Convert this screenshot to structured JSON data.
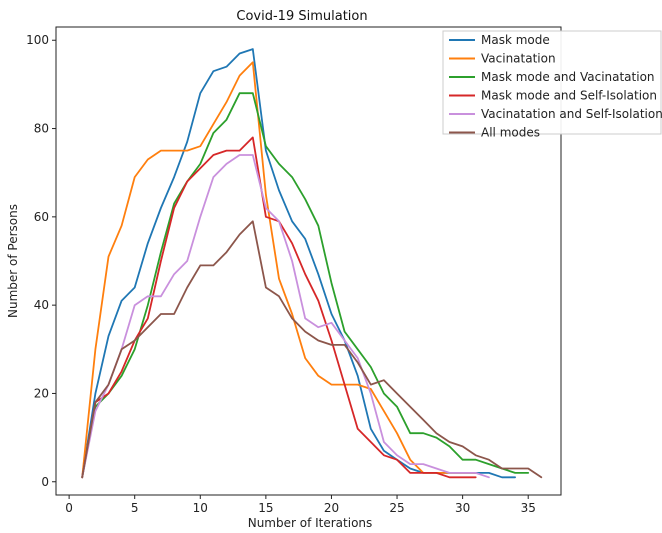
{
  "chart_data": {
    "type": "line",
    "title": "Covid-19 Simulation",
    "xlabel": "Number of Iterations",
    "ylabel": "Number of Persons",
    "xlim": [
      -1,
      37.5
    ],
    "ylim": [
      -3,
      103
    ],
    "xticks": [
      0,
      5,
      10,
      15,
      20,
      25,
      30,
      35
    ],
    "yticks": [
      0,
      20,
      40,
      60,
      80,
      100
    ],
    "grid": false,
    "legend_position": "top-right",
    "series": [
      {
        "name": "Mask mode",
        "color": "#1f77b4",
        "x": [
          1,
          2,
          3,
          4,
          5,
          6,
          7,
          8,
          9,
          10,
          11,
          12,
          13,
          14,
          15,
          16,
          17,
          18,
          19,
          20,
          21,
          22,
          23,
          24,
          25,
          26,
          27,
          28,
          29,
          30,
          31,
          32,
          33,
          34
        ],
        "y": [
          1,
          20,
          33,
          41,
          44,
          54,
          62,
          69,
          77,
          88,
          93,
          94,
          97,
          98,
          75,
          66,
          59,
          55,
          47,
          38,
          32,
          24,
          12,
          7,
          5,
          3,
          2,
          2,
          2,
          2,
          2,
          2,
          1,
          1
        ]
      },
      {
        "name": "Vacinatation",
        "color": "#ff7f0e",
        "x": [
          1,
          2,
          3,
          4,
          5,
          6,
          7,
          8,
          9,
          10,
          11,
          12,
          13,
          14,
          15,
          16,
          17,
          18,
          19,
          20,
          21,
          22,
          23,
          24,
          25,
          26,
          27,
          28,
          29,
          30,
          31
        ],
        "y": [
          1,
          30,
          51,
          58,
          69,
          73,
          75,
          75,
          75,
          76,
          81,
          86,
          92,
          95,
          65,
          46,
          38,
          28,
          24,
          22,
          22,
          22,
          21,
          16,
          11,
          5,
          2,
          2,
          2,
          2,
          2
        ]
      },
      {
        "name": "Mask  mode and Vacinatation",
        "color": "#2ca02c",
        "x": [
          1,
          2,
          3,
          4,
          5,
          6,
          7,
          8,
          9,
          10,
          11,
          12,
          13,
          14,
          15,
          16,
          17,
          18,
          19,
          20,
          21,
          22,
          23,
          24,
          25,
          26,
          27,
          28,
          29,
          30,
          31,
          32,
          33,
          34,
          35
        ],
        "y": [
          1,
          17,
          20,
          24,
          30,
          40,
          52,
          63,
          68,
          72,
          79,
          82,
          88,
          88,
          76,
          72,
          69,
          64,
          58,
          45,
          34,
          30,
          26,
          20,
          17,
          11,
          11,
          10,
          8,
          5,
          5,
          4,
          3,
          2,
          2
        ]
      },
      {
        "name": "Mask mode and Self-Isolation",
        "color": "#d62728",
        "x": [
          1,
          2,
          3,
          4,
          5,
          6,
          7,
          8,
          9,
          10,
          11,
          12,
          13,
          14,
          15,
          16,
          17,
          18,
          19,
          20,
          21,
          22,
          23,
          24,
          25,
          26,
          27,
          28,
          29,
          30,
          31
        ],
        "y": [
          1,
          18,
          20,
          25,
          32,
          37,
          50,
          62,
          68,
          71,
          74,
          75,
          75,
          78,
          60,
          59,
          54,
          47,
          41,
          32,
          22,
          12,
          9,
          6,
          5,
          2,
          2,
          2,
          1,
          1,
          1
        ]
      },
      {
        "name": "Vacinatation and Self-Isolation",
        "color": "#c990dd",
        "x": [
          1,
          2,
          3,
          4,
          5,
          6,
          7,
          8,
          9,
          10,
          11,
          12,
          13,
          14,
          15,
          16,
          17,
          18,
          19,
          20,
          21,
          22,
          23,
          24,
          25,
          26,
          27,
          28,
          29,
          30,
          31,
          32
        ],
        "y": [
          1,
          16,
          22,
          30,
          40,
          42,
          42,
          47,
          50,
          60,
          69,
          72,
          74,
          74,
          62,
          59,
          50,
          37,
          35,
          36,
          32,
          28,
          20,
          9,
          6,
          4,
          4,
          3,
          2,
          2,
          2,
          1
        ]
      },
      {
        "name": "All modes",
        "color": "#8c564b",
        "x": [
          1,
          2,
          3,
          4,
          5,
          6,
          7,
          8,
          9,
          10,
          11,
          12,
          13,
          14,
          15,
          16,
          17,
          18,
          19,
          20,
          21,
          22,
          23,
          24,
          25,
          26,
          27,
          28,
          29,
          30,
          31,
          32,
          33,
          34,
          35,
          36
        ],
        "y": [
          1,
          18,
          22,
          30,
          32,
          35,
          38,
          38,
          44,
          49,
          49,
          52,
          56,
          59,
          44,
          42,
          37,
          34,
          32,
          31,
          31,
          27,
          22,
          23,
          20,
          17,
          14,
          11,
          9,
          8,
          6,
          5,
          3,
          3,
          3,
          1
        ]
      }
    ]
  }
}
